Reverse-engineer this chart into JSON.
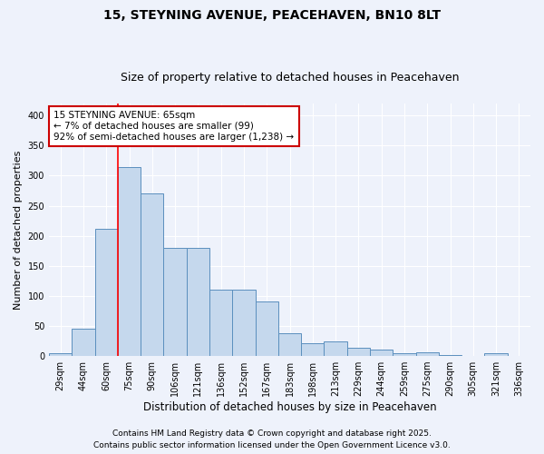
{
  "title": "15, STEYNING AVENUE, PEACEHAVEN, BN10 8LT",
  "subtitle": "Size of property relative to detached houses in Peacehaven",
  "xlabel": "Distribution of detached houses by size in Peacehaven",
  "ylabel": "Number of detached properties",
  "categories": [
    "29sqm",
    "44sqm",
    "60sqm",
    "75sqm",
    "90sqm",
    "106sqm",
    "121sqm",
    "136sqm",
    "152sqm",
    "167sqm",
    "183sqm",
    "198sqm",
    "213sqm",
    "229sqm",
    "244sqm",
    "259sqm",
    "275sqm",
    "290sqm",
    "305sqm",
    "321sqm",
    "336sqm"
  ],
  "values": [
    5,
    45,
    212,
    315,
    270,
    180,
    180,
    110,
    110,
    90,
    38,
    22,
    24,
    13,
    10,
    5,
    6,
    2,
    0,
    4,
    0
  ],
  "bar_color": "#c5d8ed",
  "bar_edge_color": "#5b8fbe",
  "red_line_x": 2.5,
  "annotation_text": "15 STEYNING AVENUE: 65sqm\n← 7% of detached houses are smaller (99)\n92% of semi-detached houses are larger (1,238) →",
  "annotation_box_facecolor": "#ffffff",
  "annotation_box_edgecolor": "#cc0000",
  "ylim": [
    0,
    420
  ],
  "yticks": [
    0,
    50,
    100,
    150,
    200,
    250,
    300,
    350,
    400
  ],
  "footer1": "Contains HM Land Registry data © Crown copyright and database right 2025.",
  "footer2": "Contains public sector information licensed under the Open Government Licence v3.0.",
  "bg_color": "#eef2fb",
  "grid_color": "#ffffff",
  "title_fontsize": 10,
  "subtitle_fontsize": 9,
  "tick_fontsize": 7,
  "ylabel_fontsize": 8,
  "xlabel_fontsize": 8.5,
  "annotation_fontsize": 7.5,
  "footer_fontsize": 6.5
}
